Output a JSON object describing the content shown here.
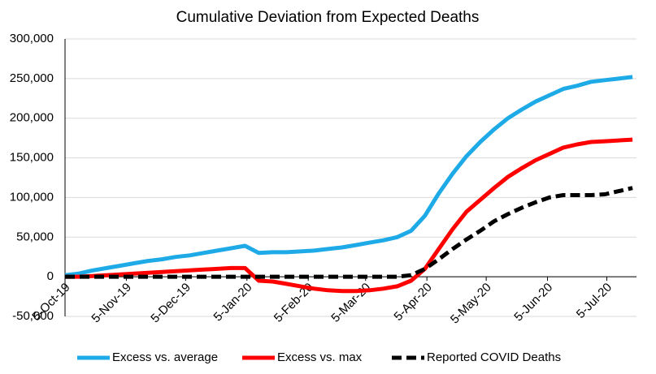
{
  "chart_data": {
    "type": "line",
    "title": "Cumulative Deviation from Expected Deaths",
    "x": [
      "2019-10-05",
      "2019-10-12",
      "2019-10-19",
      "2019-10-26",
      "2019-11-02",
      "2019-11-09",
      "2019-11-16",
      "2019-11-23",
      "2019-11-30",
      "2019-12-07",
      "2019-12-14",
      "2019-12-21",
      "2019-12-28",
      "2020-01-04",
      "2020-01-11",
      "2020-01-18",
      "2020-01-25",
      "2020-02-01",
      "2020-02-08",
      "2020-02-15",
      "2020-02-22",
      "2020-02-29",
      "2020-03-07",
      "2020-03-14",
      "2020-03-21",
      "2020-03-28",
      "2020-04-04",
      "2020-04-11",
      "2020-04-18",
      "2020-04-25",
      "2020-05-02",
      "2020-05-09",
      "2020-05-16",
      "2020-05-23",
      "2020-05-30",
      "2020-06-06",
      "2020-06-13",
      "2020-06-20",
      "2020-06-27",
      "2020-07-04",
      "2020-07-11",
      "2020-07-18"
    ],
    "series": [
      {
        "name": "Excess vs. average",
        "color": "#1eaae7",
        "dash": false,
        "values": [
          2000,
          4000,
          8000,
          11000,
          14000,
          17000,
          20000,
          22000,
          25000,
          27000,
          30000,
          33000,
          36000,
          39000,
          30000,
          31000,
          31000,
          32000,
          33000,
          35000,
          37000,
          40000,
          43000,
          46000,
          50000,
          58000,
          77000,
          105000,
          130000,
          152000,
          170000,
          186000,
          200000,
          211000,
          221000,
          229000,
          237000,
          241000,
          246000,
          248000,
          250000,
          252000
        ]
      },
      {
        "name": "Excess vs. max",
        "color": "#ff0000",
        "dash": false,
        "values": [
          0,
          0,
          1000,
          2000,
          3000,
          4000,
          5000,
          6000,
          7000,
          8000,
          9000,
          10000,
          11000,
          11000,
          -5000,
          -6000,
          -9000,
          -12000,
          -15000,
          -17000,
          -18000,
          -18000,
          -17000,
          -15000,
          -12000,
          -5000,
          10000,
          35000,
          60000,
          82000,
          97000,
          112000,
          126000,
          137000,
          147000,
          155000,
          163000,
          167000,
          170000,
          171000,
          172000,
          173000
        ]
      },
      {
        "name": "Reported COVID Deaths",
        "color": "#000000",
        "dash": true,
        "values": [
          0,
          0,
          0,
          0,
          0,
          0,
          0,
          0,
          0,
          0,
          0,
          0,
          0,
          0,
          0,
          0,
          0,
          0,
          0,
          0,
          0,
          0,
          0,
          0,
          0,
          2000,
          10000,
          22000,
          35000,
          47000,
          58000,
          70000,
          79000,
          87000,
          94000,
          100000,
          103000,
          103000,
          103000,
          104000,
          108000,
          112000
        ]
      }
    ],
    "xlim": [
      "2019-10-05",
      "2020-07-20"
    ],
    "xticks": [
      {
        "value": "2019-10-05",
        "label": "5-Oct-19"
      },
      {
        "value": "2019-11-05",
        "label": "5-Nov-19"
      },
      {
        "value": "2019-12-05",
        "label": "5-Dec-19"
      },
      {
        "value": "2020-01-05",
        "label": "5-Jan-20"
      },
      {
        "value": "2020-02-05",
        "label": "5-Feb-20"
      },
      {
        "value": "2020-03-05",
        "label": "5-Mar-20"
      },
      {
        "value": "2020-04-05",
        "label": "5-Apr-20"
      },
      {
        "value": "2020-05-05",
        "label": "5-May-20"
      },
      {
        "value": "2020-06-05",
        "label": "5-Jun-20"
      },
      {
        "value": "2020-07-05",
        "label": "5-Jul-20"
      }
    ],
    "ylim": [
      -50000,
      300000
    ],
    "yticks": [
      {
        "value": -50000,
        "label": "-50,000"
      },
      0,
      {
        "value": 50000,
        "label": "50,000"
      },
      {
        "value": 100000,
        "label": "100,000"
      },
      {
        "value": 150000,
        "label": "150,000"
      },
      {
        "value": 200000,
        "label": "200,000"
      },
      {
        "value": 250000,
        "label": "250,000"
      },
      {
        "value": 300000,
        "label": "300,000"
      }
    ],
    "grid": true
  }
}
